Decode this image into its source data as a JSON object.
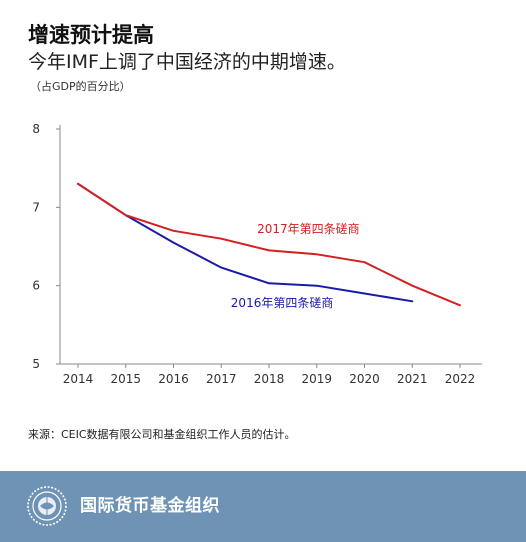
{
  "header": {
    "title": "增速预计提高",
    "subtitle": "今年IMF上调了中国经济的中期增速。",
    "unit": "（占GDP的百分比）"
  },
  "source": "来源：CEIC数据有限公司和基金组织工作人员的估计。",
  "footer": {
    "org_name": "国际货币基金组织",
    "background_color": "#6f93b4"
  },
  "chart_data": {
    "type": "line",
    "x": [
      2014,
      2015,
      2016,
      2017,
      2018,
      2019,
      2020,
      2021,
      2022
    ],
    "xlim": [
      2014,
      2022
    ],
    "ylim": [
      5,
      8
    ],
    "yticks": [
      5,
      6,
      7,
      8
    ],
    "grid": false,
    "series": [
      {
        "name": "2017年第四条磋商",
        "color": "#d42020",
        "x": [
          2014,
          2015,
          2016,
          2017,
          2018,
          2019,
          2020,
          2021,
          2022
        ],
        "values": [
          7.3,
          6.9,
          6.7,
          6.6,
          6.45,
          6.4,
          6.3,
          6.0,
          5.75
        ]
      },
      {
        "name": "2016年第四条磋商",
        "color": "#1a1aa8",
        "x": [
          2014,
          2015,
          2016,
          2017,
          2018,
          2019,
          2020,
          2021
        ],
        "values": [
          7.3,
          6.9,
          6.55,
          6.23,
          6.03,
          6.0,
          5.9,
          5.8
        ]
      }
    ]
  }
}
